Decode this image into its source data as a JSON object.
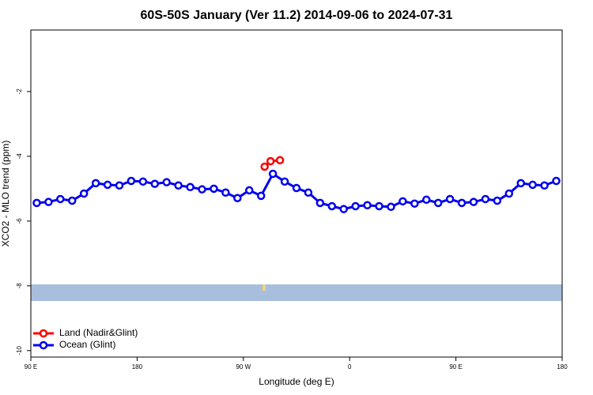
{
  "chart_data": {
    "type": "line",
    "title": "60S-50S January (Ver 11.2)   2014-09-06 to 2024-07-31",
    "x_label": "Longitude (deg E)",
    "y_label": "XCO2 - MLO trend (ppm)",
    "xlim": [
      90,
      540
    ],
    "xticks": [
      {
        "value": 90,
        "label": "90 E"
      },
      180,
      {
        "value": 270,
        "label": "90 W"
      },
      {
        "value": 360,
        "label": "0"
      },
      {
        "value": 450,
        "label": "90 E"
      },
      {
        "value": 540,
        "label": "180"
      }
    ],
    "ylim": [
      -10.2,
      -0.1
    ],
    "yticks": [
      -2,
      -4,
      -6,
      -8,
      -10
    ],
    "legend": "lower left",
    "series": [
      {
        "name": "Land (Nadir&Glint)",
        "color": "#ff0000",
        "x": [
          288,
          293,
          301
        ],
        "values": [
          -4.32,
          -4.15,
          -4.12
        ]
      },
      {
        "name": "Ocean (Glint)",
        "color": "#0000ee",
        "x": [
          95,
          105,
          115,
          125,
          135,
          145,
          155,
          165,
          175,
          185,
          195,
          205,
          215,
          225,
          235,
          245,
          255,
          265,
          275,
          285,
          295,
          305,
          315,
          325,
          335,
          345,
          355,
          365,
          375,
          385,
          395,
          405,
          415,
          425,
          435,
          445,
          455,
          465,
          475,
          485,
          495,
          505,
          515,
          525,
          535
        ],
        "values": [
          -5.44,
          -5.41,
          -5.32,
          -5.37,
          -5.15,
          -4.83,
          -4.88,
          -4.9,
          -4.76,
          -4.78,
          -4.85,
          -4.8,
          -4.9,
          -4.95,
          -5.02,
          -5.0,
          -5.12,
          -5.29,
          -5.05,
          -5.22,
          -4.54,
          -4.78,
          -4.98,
          -5.12,
          -5.44,
          -5.54,
          -5.63,
          -5.54,
          -5.51,
          -5.54,
          -5.56,
          -5.39,
          -5.46,
          -5.34,
          -5.44,
          -5.32,
          -5.44,
          -5.41,
          -5.32,
          -5.37,
          -5.15,
          -4.83,
          -4.88,
          -4.9,
          -4.76
        ]
      }
    ]
  }
}
